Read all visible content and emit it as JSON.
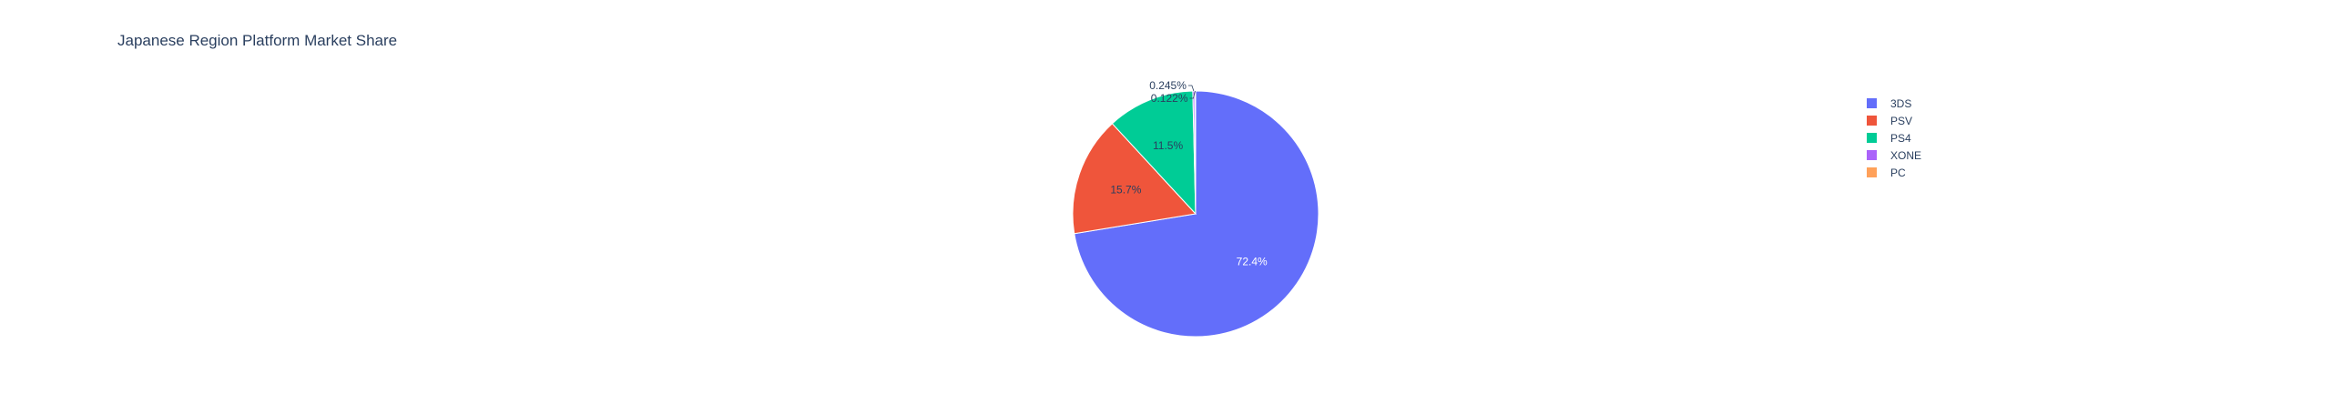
{
  "chart_data": {
    "type": "pie",
    "title": "Japanese Region Platform Market Share",
    "slices": [
      {
        "label": "3DS",
        "percent": 72.4,
        "percent_label": "72.4%",
        "color": "#636efa"
      },
      {
        "label": "PSV",
        "percent": 15.7,
        "percent_label": "15.7%",
        "color": "#ef553b"
      },
      {
        "label": "PS4",
        "percent": 11.5,
        "percent_label": "11.5%",
        "color": "#00cc96"
      },
      {
        "label": "XONE",
        "percent": 0.245,
        "percent_label": "0.245%",
        "color": "#ab63fa"
      },
      {
        "label": "PC",
        "percent": 0.122,
        "percent_label": "0.122%",
        "color": "#ffa15a"
      }
    ],
    "direction": "clockwise",
    "start": "top",
    "legend_position": "top-right"
  },
  "colors": {
    "title_text": "#2a3f5f",
    "label_dark": "#2a3f5f",
    "label_light": "#ffffff",
    "slice_border": "#ffffff",
    "background": "#ffffff"
  }
}
